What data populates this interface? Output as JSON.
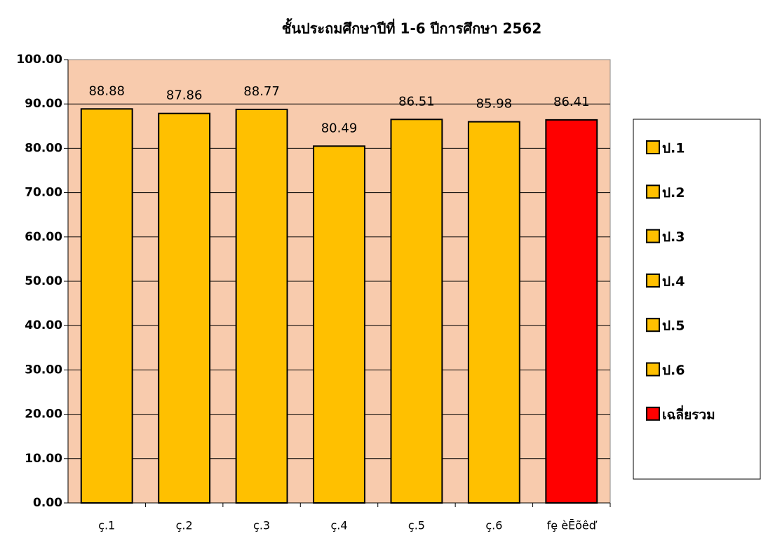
{
  "chart_data": {
    "type": "bar",
    "title": "ชั้นประถมศึกษาปีที่ 1-6 ปีการศึกษา 2562",
    "categories": [
      "ç.1",
      "ç.2",
      "ç.3",
      "ç.4",
      "ç.5",
      "ç.6",
      "fȩ èĒõêď"
    ],
    "values": [
      88.88,
      87.86,
      88.77,
      80.49,
      86.51,
      85.98,
      86.41
    ],
    "colors": [
      "#ffc000",
      "#ffc000",
      "#ffc000",
      "#ffc000",
      "#ffc000",
      "#ffc000",
      "#ff0000"
    ],
    "legend": [
      "ป.1",
      "ป.2",
      "ป.3",
      "ป.4",
      "ป.5",
      "ป.6",
      "เฉลี่ยรวม"
    ],
    "ylim": [
      0,
      100
    ],
    "yticks": [
      {
        "value": 0,
        "label": "0.00"
      },
      {
        "value": 10,
        "label": "10.00"
      },
      {
        "value": 20,
        "label": "20.00"
      },
      {
        "value": 30,
        "label": "30.00"
      },
      {
        "value": 40,
        "label": "40.00"
      },
      {
        "value": 50,
        "label": "50.00"
      },
      {
        "value": 60,
        "label": "60.00"
      },
      {
        "value": 70,
        "label": "70.00"
      },
      {
        "value": 80,
        "label": "80.00"
      },
      {
        "value": 90,
        "label": "90.00"
      },
      {
        "value": 100,
        "label": "100.00"
      }
    ],
    "grid": true
  }
}
